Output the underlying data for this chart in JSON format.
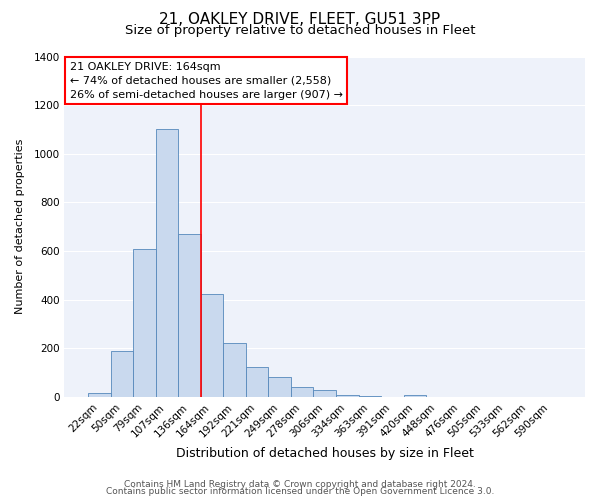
{
  "title": "21, OAKLEY DRIVE, FLEET, GU51 3PP",
  "subtitle": "Size of property relative to detached houses in Fleet",
  "xlabel": "Distribution of detached houses by size in Fleet",
  "ylabel": "Number of detached properties",
  "bar_color": "#c9d9ee",
  "bar_edgecolor": "#5588bb",
  "background_color": "#eef2fa",
  "grid_color": "#ffffff",
  "categories": [
    "22sqm",
    "50sqm",
    "79sqm",
    "107sqm",
    "136sqm",
    "164sqm",
    "192sqm",
    "221sqm",
    "249sqm",
    "278sqm",
    "306sqm",
    "334sqm",
    "363sqm",
    "391sqm",
    "420sqm",
    "448sqm",
    "476sqm",
    "505sqm",
    "533sqm",
    "562sqm",
    "590sqm"
  ],
  "values": [
    15,
    190,
    610,
    1100,
    670,
    425,
    220,
    125,
    80,
    40,
    28,
    10,
    5,
    0,
    10,
    0,
    0,
    0,
    0,
    0,
    0
  ],
  "ylim": [
    0,
    1400
  ],
  "yticks": [
    0,
    200,
    400,
    600,
    800,
    1000,
    1200,
    1400
  ],
  "red_line_index": 5,
  "annotation_title": "21 OAKLEY DRIVE: 164sqm",
  "annotation_line1": "← 74% of detached houses are smaller (2,558)",
  "annotation_line2": "26% of semi-detached houses are larger (907) →",
  "footer1": "Contains HM Land Registry data © Crown copyright and database right 2024.",
  "footer2": "Contains public sector information licensed under the Open Government Licence 3.0.",
  "title_fontsize": 11,
  "subtitle_fontsize": 9.5,
  "xlabel_fontsize": 9,
  "ylabel_fontsize": 8,
  "tick_fontsize": 7.5,
  "annotation_fontsize": 8,
  "footer_fontsize": 6.5
}
